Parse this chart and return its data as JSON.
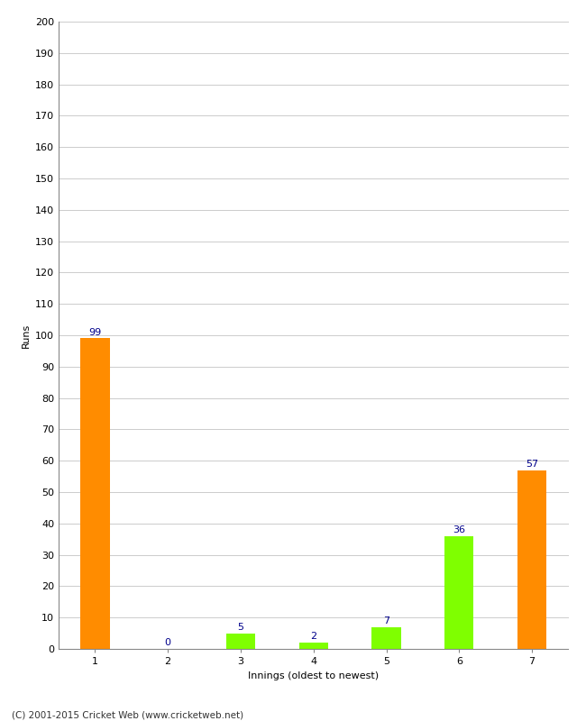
{
  "categories": [
    "1",
    "2",
    "3",
    "4",
    "5",
    "6",
    "7"
  ],
  "values": [
    99,
    0,
    5,
    2,
    7,
    36,
    57
  ],
  "bar_colors": [
    "#FF8C00",
    "#7FFF00",
    "#7FFF00",
    "#7FFF00",
    "#7FFF00",
    "#7FFF00",
    "#FF8C00"
  ],
  "xlabel": "Innings (oldest to newest)",
  "ylabel": "Runs",
  "ylim": [
    0,
    200
  ],
  "yticks": [
    0,
    10,
    20,
    30,
    40,
    50,
    60,
    70,
    80,
    90,
    100,
    110,
    120,
    130,
    140,
    150,
    160,
    170,
    180,
    190,
    200
  ],
  "label_color": "#00008B",
  "background_color": "#ffffff",
  "grid_color": "#cccccc",
  "bar_width": 0.4,
  "footer": "(C) 2001-2015 Cricket Web (www.cricketweb.net)"
}
